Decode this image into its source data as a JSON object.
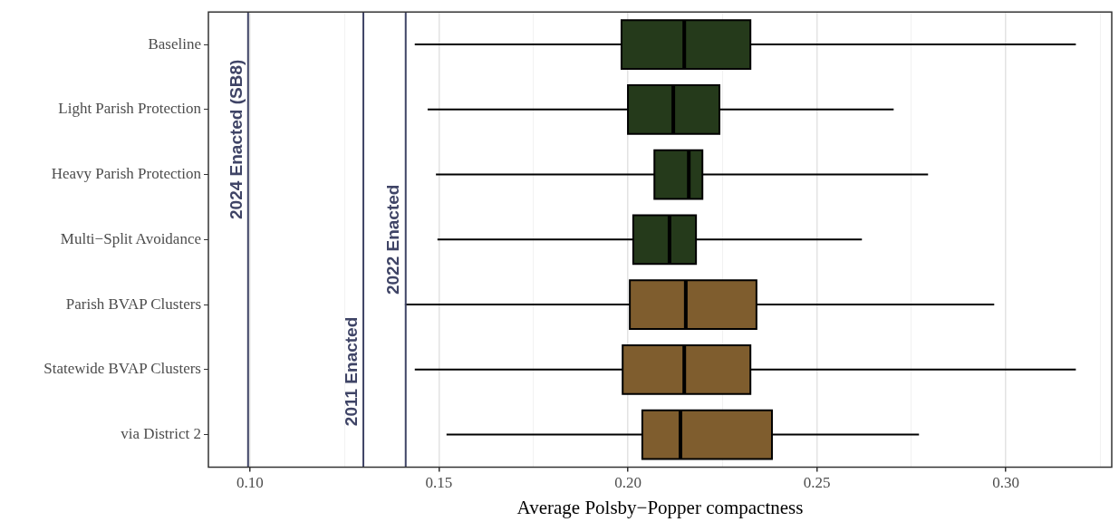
{
  "chart_data": {
    "type": "box",
    "orientation": "horizontal",
    "xlabel": "Average Polsby−Popper compactness",
    "categories": [
      "Baseline",
      "Light Parish Protection",
      "Heavy Parish Protection",
      "Multi−Split Avoidance",
      "Parish BVAP Clusters",
      "Statewide BVAP Clusters",
      "via District 2"
    ],
    "boxes": [
      {
        "low": 0.1436,
        "q1": 0.1983,
        "median": 0.2149,
        "q3": 0.2324,
        "high": 0.3185
      },
      {
        "low": 0.147,
        "q1": 0.2,
        "median": 0.212,
        "q3": 0.2242,
        "high": 0.2703
      },
      {
        "low": 0.1492,
        "q1": 0.207,
        "median": 0.2161,
        "q3": 0.2197,
        "high": 0.2794
      },
      {
        "low": 0.1496,
        "q1": 0.2014,
        "median": 0.211,
        "q3": 0.218,
        "high": 0.2619
      },
      {
        "low": 0.141,
        "q1": 0.2005,
        "median": 0.2153,
        "q3": 0.234,
        "high": 0.2969
      },
      {
        "low": 0.1436,
        "q1": 0.1986,
        "median": 0.2149,
        "q3": 0.2324,
        "high": 0.3185
      },
      {
        "low": 0.152,
        "q1": 0.2038,
        "median": 0.2139,
        "q3": 0.2381,
        "high": 0.277
      }
    ],
    "colors": [
      "#253a1b",
      "#253a1b",
      "#253a1b",
      "#253a1b",
      "#7f5d2e",
      "#7f5d2e",
      "#7f5d2e"
    ],
    "xlim": [
      0.089,
      0.328
    ],
    "xticks": [
      {
        "value": 0.1,
        "label": "0.10"
      },
      {
        "value": 0.125,
        "label": null
      },
      {
        "value": 0.15,
        "label": "0.15"
      },
      {
        "value": 0.175,
        "label": null
      },
      {
        "value": 0.2,
        "label": "0.20"
      },
      {
        "value": 0.225,
        "label": null
      },
      {
        "value": 0.25,
        "label": "0.25"
      },
      {
        "value": 0.275,
        "label": null
      },
      {
        "value": 0.3,
        "label": "0.30"
      },
      {
        "value": 0.325,
        "label": null
      }
    ],
    "ref_lines": [
      {
        "axis": "x",
        "value": 0.0995,
        "label": "2024 Enacted (SB8)",
        "color": "#3f4466"
      },
      {
        "axis": "x",
        "value": 0.13,
        "label": "2011 Enacted",
        "color": "#3f4466"
      },
      {
        "axis": "x",
        "value": 0.1412,
        "label": "2022 Enacted",
        "color": "#3f4466"
      }
    ],
    "grid": true,
    "legend": false
  }
}
